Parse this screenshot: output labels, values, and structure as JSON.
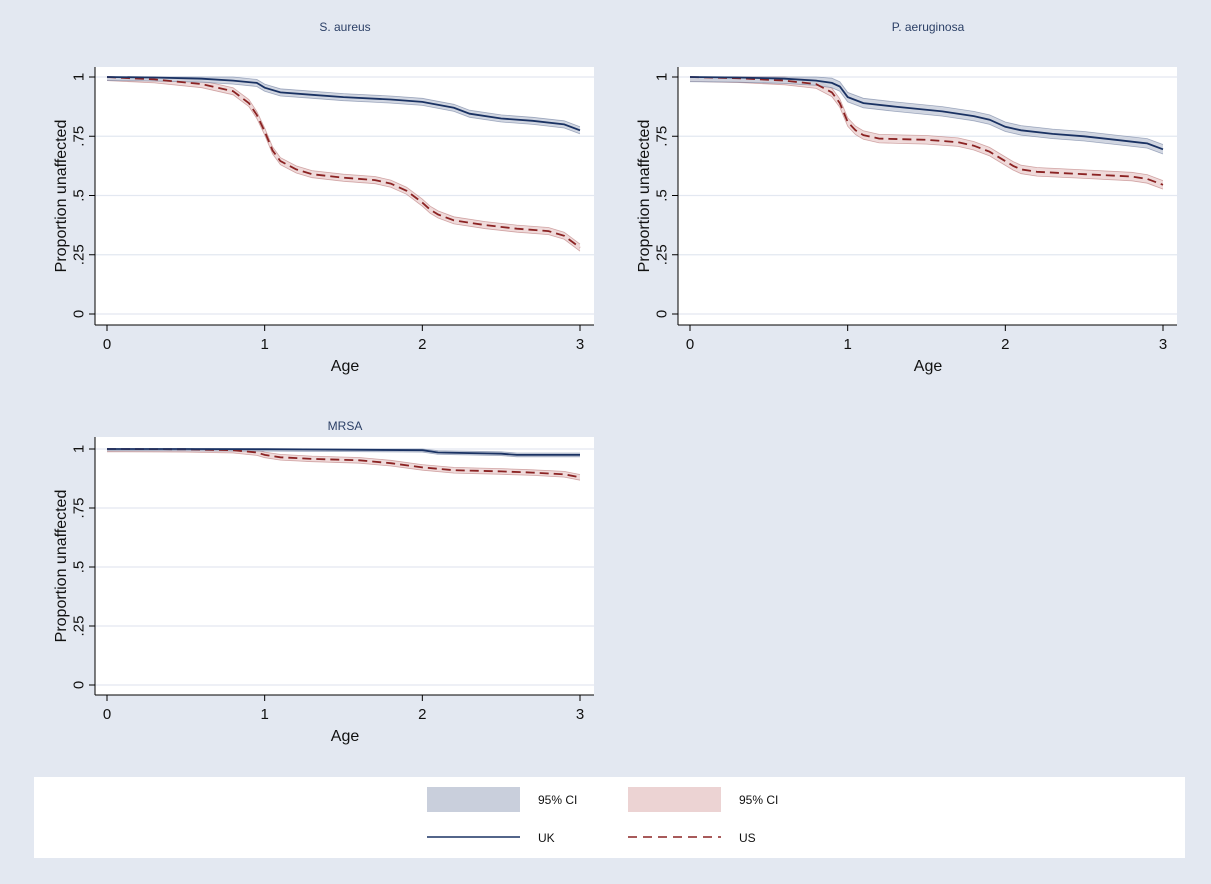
{
  "colors": {
    "uk": "#1a3263",
    "uk_ci": "#c9cfdc",
    "us": "#8b2323",
    "us_ci": "#ecd3d3",
    "gridline": "#e3e8f1",
    "background": "#e3e8f1",
    "plot_bg": "#ffffff"
  },
  "legend": {
    "placement": "bottom",
    "uk_ci_label": "95% CI",
    "us_ci_label": "95% CI",
    "uk_label": "UK",
    "us_label": "US"
  },
  "chart_data": [
    {
      "type": "line",
      "title": "S. aureus",
      "xlabel": "Age",
      "ylabel": "Proportion unaffected",
      "xlim": [
        0,
        3
      ],
      "ylim": [
        0,
        1
      ],
      "xticks": [
        "0",
        "1",
        "2",
        "3"
      ],
      "yticks": [
        "0",
        ".25",
        ".5",
        ".75",
        "1"
      ],
      "grid": true,
      "series": [
        {
          "name": "UK",
          "style": "solid",
          "x": [
            0,
            0.3,
            0.6,
            0.8,
            0.95,
            1.0,
            1.1,
            1.3,
            1.5,
            1.8,
            2.0,
            2.2,
            2.3,
            2.5,
            2.7,
            2.9,
            3.0
          ],
          "y": [
            1,
            0.998,
            0.993,
            0.985,
            0.975,
            0.955,
            0.935,
            0.925,
            0.915,
            0.905,
            0.895,
            0.87,
            0.845,
            0.825,
            0.815,
            0.8,
            0.775
          ],
          "ci_halfwidth": 0.015
        },
        {
          "name": "US",
          "style": "dashed",
          "x": [
            0,
            0.3,
            0.6,
            0.8,
            0.9,
            0.95,
            1.0,
            1.05,
            1.1,
            1.2,
            1.3,
            1.5,
            1.7,
            1.8,
            1.9,
            2.0,
            2.05,
            2.1,
            2.2,
            2.4,
            2.6,
            2.8,
            2.9,
            3.0
          ],
          "y": [
            1,
            0.99,
            0.97,
            0.94,
            0.89,
            0.84,
            0.77,
            0.69,
            0.645,
            0.61,
            0.59,
            0.575,
            0.565,
            0.55,
            0.52,
            0.47,
            0.44,
            0.42,
            0.395,
            0.375,
            0.36,
            0.35,
            0.33,
            0.28
          ],
          "ci_halfwidth": 0.015
        }
      ]
    },
    {
      "type": "line",
      "title": "P. aeruginosa",
      "xlabel": "Age",
      "ylabel": "Proportion unaffected",
      "xlim": [
        0,
        3
      ],
      "ylim": [
        0,
        1
      ],
      "xticks": [
        "0",
        "1",
        "2",
        "3"
      ],
      "yticks": [
        "0",
        ".25",
        ".5",
        ".75",
        "1"
      ],
      "grid": true,
      "series": [
        {
          "name": "UK",
          "style": "solid",
          "x": [
            0,
            0.3,
            0.6,
            0.8,
            0.9,
            0.95,
            1.0,
            1.1,
            1.3,
            1.6,
            1.8,
            1.9,
            2.0,
            2.1,
            2.3,
            2.5,
            2.7,
            2.9,
            3.0
          ],
          "y": [
            1,
            0.998,
            0.993,
            0.985,
            0.975,
            0.96,
            0.915,
            0.89,
            0.875,
            0.855,
            0.835,
            0.82,
            0.79,
            0.775,
            0.76,
            0.75,
            0.735,
            0.72,
            0.695
          ],
          "ci_halfwidth": 0.02
        },
        {
          "name": "US",
          "style": "dashed",
          "x": [
            0,
            0.3,
            0.6,
            0.8,
            0.9,
            0.95,
            1.0,
            1.05,
            1.1,
            1.2,
            1.5,
            1.7,
            1.8,
            1.9,
            2.0,
            2.05,
            2.1,
            2.2,
            2.5,
            2.8,
            2.9,
            3.0
          ],
          "y": [
            1,
            0.995,
            0.985,
            0.97,
            0.935,
            0.89,
            0.81,
            0.775,
            0.755,
            0.74,
            0.735,
            0.725,
            0.71,
            0.685,
            0.645,
            0.625,
            0.61,
            0.6,
            0.59,
            0.58,
            0.57,
            0.545
          ],
          "ci_halfwidth": 0.018
        }
      ]
    },
    {
      "type": "line",
      "title": "MRSA",
      "xlabel": "Age",
      "ylabel": "Proportion unaffected",
      "xlim": [
        0,
        3
      ],
      "ylim": [
        0,
        1
      ],
      "xticks": [
        "0",
        "1",
        "2",
        "3"
      ],
      "yticks": [
        "0",
        ".25",
        ".5",
        ".75",
        "1"
      ],
      "grid": true,
      "series": [
        {
          "name": "UK",
          "style": "solid",
          "x": [
            0,
            0.5,
            1.0,
            1.5,
            2.0,
            2.1,
            2.5,
            2.6,
            3.0
          ],
          "y": [
            1,
            1,
            0.999,
            0.997,
            0.995,
            0.985,
            0.98,
            0.975,
            0.975
          ],
          "ci_halfwidth": 0.008
        },
        {
          "name": "US",
          "style": "dashed",
          "x": [
            0,
            0.5,
            0.8,
            0.95,
            1.0,
            1.1,
            1.3,
            1.6,
            1.8,
            2.0,
            2.2,
            2.5,
            2.7,
            2.9,
            3.0
          ],
          "y": [
            1,
            0.999,
            0.995,
            0.985,
            0.975,
            0.965,
            0.958,
            0.952,
            0.94,
            0.922,
            0.91,
            0.905,
            0.9,
            0.893,
            0.88
          ],
          "ci_halfwidth": 0.012
        }
      ]
    }
  ]
}
